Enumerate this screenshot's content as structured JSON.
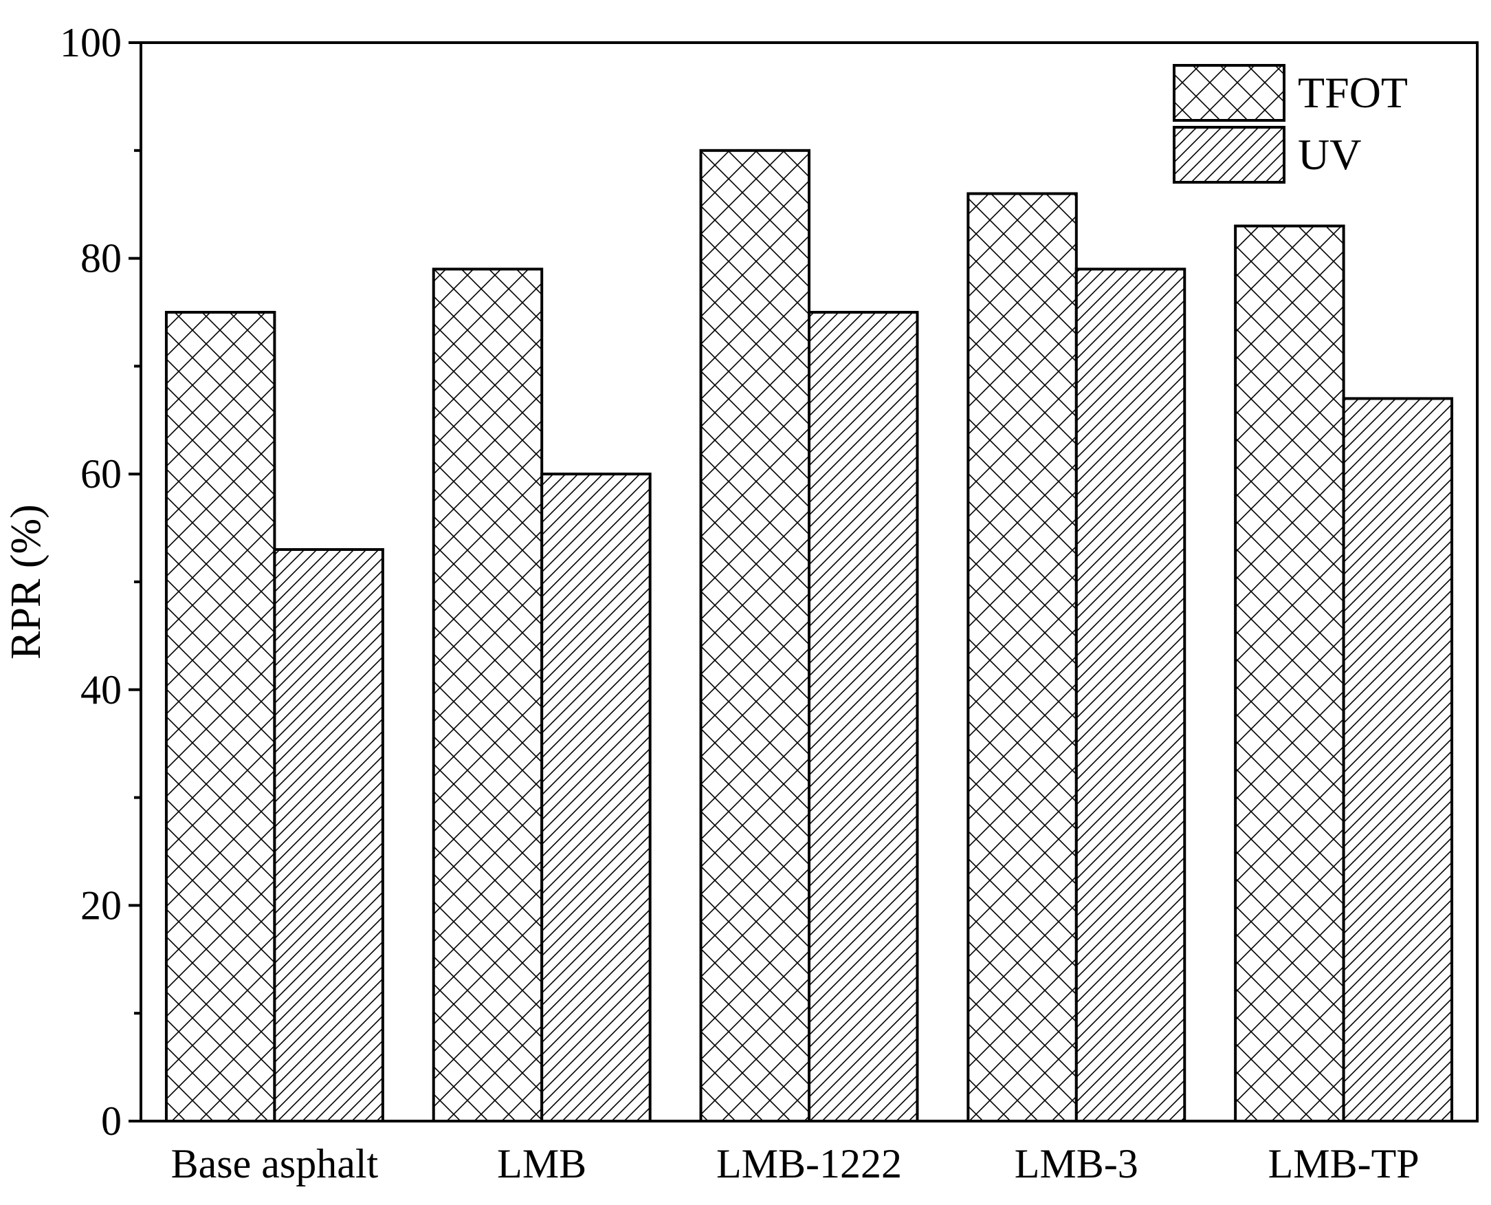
{
  "chart_data": {
    "type": "bar",
    "title": "",
    "xlabel": "",
    "ylabel": "RPR (%)",
    "ylim": [
      0,
      100
    ],
    "y_major_ticks": [
      0,
      20,
      40,
      60,
      80,
      100
    ],
    "y_minor_step": 10,
    "grid": false,
    "legend_position": "top-right",
    "categories": [
      "Base asphalt",
      "LMB",
      "LMB-1222",
      "LMB-3",
      "LMB-TP"
    ],
    "series": [
      {
        "name": "TFOT",
        "pattern": "crosshatch",
        "fill": "#ffffff",
        "stroke": "#000000",
        "values": [
          75,
          79,
          90,
          86,
          83
        ]
      },
      {
        "name": "UV",
        "pattern": "diagonal-hatch",
        "fill": "#ffffff",
        "stroke": "#000000",
        "values": [
          53,
          60,
          75,
          79,
          67
        ]
      }
    ]
  }
}
